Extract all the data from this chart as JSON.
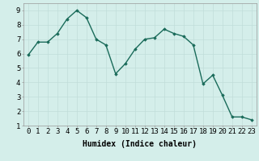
{
  "x": [
    0,
    1,
    2,
    3,
    4,
    5,
    6,
    7,
    8,
    9,
    10,
    11,
    12,
    13,
    14,
    15,
    16,
    17,
    18,
    19,
    20,
    21,
    22,
    23
  ],
  "y": [
    5.9,
    6.8,
    6.8,
    7.4,
    8.4,
    9.0,
    8.5,
    7.0,
    6.6,
    4.6,
    5.3,
    6.3,
    7.0,
    7.1,
    7.7,
    7.4,
    7.2,
    6.6,
    3.9,
    4.5,
    3.1,
    1.6,
    1.6,
    1.4
  ],
  "xlabel": "Humidex (Indice chaleur)",
  "line_color": "#1a6b5a",
  "marker": "D",
  "marker_size": 1.8,
  "line_width": 1.0,
  "background_color": "#d4eeea",
  "grid_color": "#c0ddd9",
  "xlim": [
    -0.5,
    23.5
  ],
  "ylim": [
    1,
    9.5
  ],
  "xtick_labels": [
    "0",
    "1",
    "2",
    "3",
    "4",
    "5",
    "6",
    "7",
    "8",
    "9",
    "10",
    "11",
    "12",
    "13",
    "14",
    "15",
    "16",
    "17",
    "18",
    "19",
    "20",
    "21",
    "22",
    "23"
  ],
  "ytick_values": [
    1,
    2,
    3,
    4,
    5,
    6,
    7,
    8,
    9
  ],
  "xlabel_fontsize": 7,
  "tick_fontsize": 6.5
}
